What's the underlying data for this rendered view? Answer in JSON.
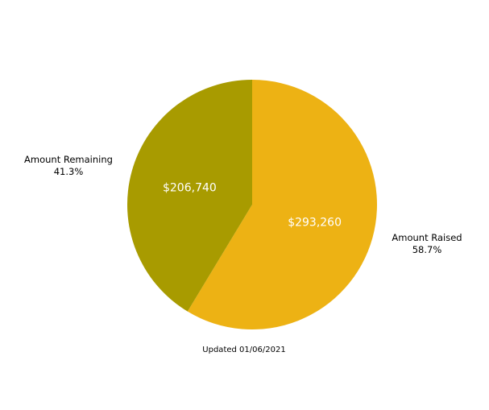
{
  "chart_data": {
    "type": "pie",
    "slices": [
      {
        "label": "Amount Raised",
        "value": 293260,
        "value_label": "$293,260",
        "percent_label": "58.7%",
        "color": "#EDB214"
      },
      {
        "label": "Amount Remaining",
        "value": 206740,
        "value_label": "$206,740",
        "percent_label": "41.3%",
        "color": "#A89B00"
      }
    ],
    "start_angle": "12 o'clock, clockwise",
    "legend": "none",
    "footnote": "Updated 01/06/2021"
  }
}
